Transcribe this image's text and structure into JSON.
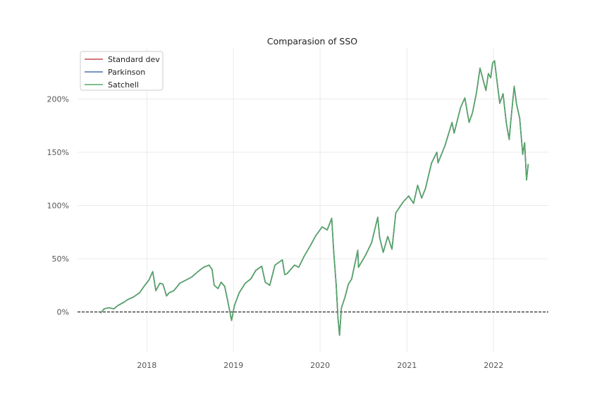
{
  "chart_data": {
    "type": "line",
    "title": "Comparasion of SSO",
    "xlabel": "",
    "ylabel": "",
    "x_ticks": [
      "2018",
      "2019",
      "2020",
      "2021",
      "2022"
    ],
    "y_ticks": [
      "0%",
      "50%",
      "100%",
      "150%",
      "200%"
    ],
    "ylim": [
      -0.38,
      2.48
    ],
    "xlim": [
      "2017-03-15",
      "2022-08-20"
    ],
    "grid": true,
    "legend_position": "top-left",
    "baseline": 0,
    "series": [
      {
        "name": "Standard dev",
        "color": "#c44e52",
        "x": [
          "2017-06-20",
          "2017-07-05",
          "2017-07-25",
          "2017-08-15",
          "2017-09-01",
          "2017-09-25",
          "2017-10-15",
          "2017-11-05",
          "2017-12-01",
          "2017-12-20",
          "2018-01-10",
          "2018-01-26",
          "2018-02-08",
          "2018-02-25",
          "2018-03-10",
          "2018-03-25",
          "2018-04-05",
          "2018-04-25",
          "2018-05-20",
          "2018-06-15",
          "2018-07-10",
          "2018-08-05",
          "2018-08-28",
          "2018-09-20",
          "2018-10-03",
          "2018-10-12",
          "2018-10-28",
          "2018-11-10",
          "2018-11-25",
          "2018-12-10",
          "2018-12-24",
          "2019-01-05",
          "2019-01-25",
          "2019-02-20",
          "2019-03-15",
          "2019-04-05",
          "2019-04-30",
          "2019-05-15",
          "2019-06-03",
          "2019-06-25",
          "2019-07-26",
          "2019-08-05",
          "2019-08-15",
          "2019-09-15",
          "2019-10-03",
          "2019-10-25",
          "2019-11-20",
          "2019-12-15",
          "2020-01-10",
          "2020-01-31",
          "2020-02-19",
          "2020-02-28",
          "2020-03-09",
          "2020-03-16",
          "2020-03-23",
          "2020-03-31",
          "2020-04-15",
          "2020-04-29",
          "2020-05-13",
          "2020-06-08",
          "2020-06-11",
          "2020-07-10",
          "2020-08-05",
          "2020-08-31",
          "2020-09-08",
          "2020-09-23",
          "2020-10-12",
          "2020-10-30",
          "2020-11-15",
          "2020-12-15",
          "2021-01-08",
          "2021-01-29",
          "2021-02-15",
          "2021-03-04",
          "2021-03-20",
          "2021-04-15",
          "2021-05-07",
          "2021-05-12",
          "2021-06-10",
          "2021-07-10",
          "2021-07-19",
          "2021-08-15",
          "2021-09-02",
          "2021-09-20",
          "2021-10-04",
          "2021-10-21",
          "2021-11-05",
          "2021-11-18",
          "2021-11-30",
          "2021-12-10",
          "2021-12-20",
          "2021-12-28",
          "2022-01-05",
          "2022-01-15",
          "2022-01-27",
          "2022-02-10",
          "2022-02-24",
          "2022-03-08",
          "2022-03-15",
          "2022-03-29",
          "2022-04-08",
          "2022-04-21",
          "2022-05-04",
          "2022-05-12",
          "2022-05-20",
          "2022-05-27"
        ],
        "y": [
          -0.01,
          0.03,
          0.04,
          0.03,
          0.06,
          0.09,
          0.12,
          0.14,
          0.18,
          0.24,
          0.3,
          0.38,
          0.2,
          0.27,
          0.26,
          0.15,
          0.18,
          0.2,
          0.27,
          0.3,
          0.33,
          0.38,
          0.42,
          0.44,
          0.4,
          0.25,
          0.22,
          0.28,
          0.24,
          0.08,
          -0.08,
          0.06,
          0.18,
          0.27,
          0.31,
          0.39,
          0.43,
          0.28,
          0.25,
          0.44,
          0.49,
          0.35,
          0.36,
          0.44,
          0.42,
          0.52,
          0.62,
          0.72,
          0.8,
          0.77,
          0.88,
          0.55,
          0.25,
          -0.05,
          -0.22,
          0.04,
          0.14,
          0.26,
          0.31,
          0.58,
          0.42,
          0.53,
          0.65,
          0.89,
          0.7,
          0.56,
          0.71,
          0.59,
          0.93,
          1.03,
          1.09,
          1.02,
          1.19,
          1.07,
          1.16,
          1.4,
          1.5,
          1.4,
          1.56,
          1.78,
          1.68,
          1.92,
          2.01,
          1.78,
          1.87,
          2.06,
          2.29,
          2.18,
          2.08,
          2.24,
          2.2,
          2.34,
          2.36,
          2.18,
          1.96,
          2.05,
          1.77,
          1.62,
          1.8,
          2.12,
          1.95,
          1.82,
          1.48,
          1.59,
          1.24,
          1.39
        ]
      },
      {
        "name": "Parkinson",
        "color": "#4c72b0",
        "x": [
          "2017-06-20",
          "2017-07-05",
          "2017-07-25",
          "2017-08-15",
          "2017-09-01",
          "2017-09-25",
          "2017-10-15",
          "2017-11-05",
          "2017-12-01",
          "2017-12-20",
          "2018-01-10",
          "2018-01-26",
          "2018-02-08",
          "2018-02-25",
          "2018-03-10",
          "2018-03-25",
          "2018-04-05",
          "2018-04-25",
          "2018-05-20",
          "2018-06-15",
          "2018-07-10",
          "2018-08-05",
          "2018-08-28",
          "2018-09-20",
          "2018-10-03",
          "2018-10-12",
          "2018-10-28",
          "2018-11-10",
          "2018-11-25",
          "2018-12-10",
          "2018-12-24",
          "2019-01-05",
          "2019-01-25",
          "2019-02-20",
          "2019-03-15",
          "2019-04-05",
          "2019-04-30",
          "2019-05-15",
          "2019-06-03",
          "2019-06-25",
          "2019-07-26",
          "2019-08-05",
          "2019-08-15",
          "2019-09-15",
          "2019-10-03",
          "2019-10-25",
          "2019-11-20",
          "2019-12-15",
          "2020-01-10",
          "2020-01-31",
          "2020-02-19",
          "2020-02-28",
          "2020-03-09",
          "2020-03-16",
          "2020-03-23",
          "2020-03-31",
          "2020-04-15",
          "2020-04-29",
          "2020-05-13",
          "2020-06-08",
          "2020-06-11",
          "2020-07-10",
          "2020-08-05",
          "2020-08-31",
          "2020-09-08",
          "2020-09-23",
          "2020-10-12",
          "2020-10-30",
          "2020-11-15",
          "2020-12-15",
          "2021-01-08",
          "2021-01-29",
          "2021-02-15",
          "2021-03-04",
          "2021-03-20",
          "2021-04-15",
          "2021-05-07",
          "2021-05-12",
          "2021-06-10",
          "2021-07-10",
          "2021-07-19",
          "2021-08-15",
          "2021-09-02",
          "2021-09-20",
          "2021-10-04",
          "2021-10-21",
          "2021-11-05",
          "2021-11-18",
          "2021-11-30",
          "2021-12-10",
          "2021-12-20",
          "2021-12-28",
          "2022-01-05",
          "2022-01-15",
          "2022-01-27",
          "2022-02-10",
          "2022-02-24",
          "2022-03-08",
          "2022-03-15",
          "2022-03-29",
          "2022-04-08",
          "2022-04-21",
          "2022-05-04",
          "2022-05-12",
          "2022-05-20",
          "2022-05-27"
        ],
        "y": [
          -0.01,
          0.03,
          0.04,
          0.03,
          0.06,
          0.09,
          0.12,
          0.14,
          0.18,
          0.24,
          0.3,
          0.38,
          0.2,
          0.27,
          0.26,
          0.15,
          0.18,
          0.2,
          0.27,
          0.3,
          0.33,
          0.38,
          0.42,
          0.44,
          0.4,
          0.25,
          0.22,
          0.28,
          0.24,
          0.08,
          -0.08,
          0.06,
          0.18,
          0.27,
          0.31,
          0.39,
          0.43,
          0.28,
          0.25,
          0.44,
          0.49,
          0.35,
          0.36,
          0.44,
          0.42,
          0.52,
          0.62,
          0.72,
          0.8,
          0.77,
          0.88,
          0.55,
          0.25,
          -0.05,
          -0.22,
          0.04,
          0.14,
          0.26,
          0.31,
          0.58,
          0.42,
          0.53,
          0.65,
          0.89,
          0.7,
          0.56,
          0.71,
          0.59,
          0.93,
          1.03,
          1.09,
          1.02,
          1.19,
          1.07,
          1.16,
          1.4,
          1.5,
          1.4,
          1.56,
          1.78,
          1.68,
          1.92,
          2.01,
          1.78,
          1.87,
          2.06,
          2.29,
          2.18,
          2.08,
          2.24,
          2.2,
          2.34,
          2.36,
          2.18,
          1.96,
          2.05,
          1.77,
          1.62,
          1.8,
          2.12,
          1.95,
          1.82,
          1.48,
          1.59,
          1.24,
          1.39
        ]
      },
      {
        "name": "Satchell",
        "color": "#55a868",
        "x": [
          "2017-06-20",
          "2017-07-05",
          "2017-07-25",
          "2017-08-15",
          "2017-09-01",
          "2017-09-25",
          "2017-10-15",
          "2017-11-05",
          "2017-12-01",
          "2017-12-20",
          "2018-01-10",
          "2018-01-26",
          "2018-02-08",
          "2018-02-25",
          "2018-03-10",
          "2018-03-25",
          "2018-04-05",
          "2018-04-25",
          "2018-05-20",
          "2018-06-15",
          "2018-07-10",
          "2018-08-05",
          "2018-08-28",
          "2018-09-20",
          "2018-10-03",
          "2018-10-12",
          "2018-10-28",
          "2018-11-10",
          "2018-11-25",
          "2018-12-10",
          "2018-12-24",
          "2019-01-05",
          "2019-01-25",
          "2019-02-20",
          "2019-03-15",
          "2019-04-05",
          "2019-04-30",
          "2019-05-15",
          "2019-06-03",
          "2019-06-25",
          "2019-07-26",
          "2019-08-05",
          "2019-08-15",
          "2019-09-15",
          "2019-10-03",
          "2019-10-25",
          "2019-11-20",
          "2019-12-15",
          "2020-01-10",
          "2020-01-31",
          "2020-02-19",
          "2020-02-28",
          "2020-03-09",
          "2020-03-16",
          "2020-03-23",
          "2020-03-31",
          "2020-04-15",
          "2020-04-29",
          "2020-05-13",
          "2020-06-08",
          "2020-06-11",
          "2020-07-10",
          "2020-08-05",
          "2020-08-31",
          "2020-09-08",
          "2020-09-23",
          "2020-10-12",
          "2020-10-30",
          "2020-11-15",
          "2020-12-15",
          "2021-01-08",
          "2021-01-29",
          "2021-02-15",
          "2021-03-04",
          "2021-03-20",
          "2021-04-15",
          "2021-05-07",
          "2021-05-12",
          "2021-06-10",
          "2021-07-10",
          "2021-07-19",
          "2021-08-15",
          "2021-09-02",
          "2021-09-20",
          "2021-10-04",
          "2021-10-21",
          "2021-11-05",
          "2021-11-18",
          "2021-11-30",
          "2021-12-10",
          "2021-12-20",
          "2021-12-28",
          "2022-01-05",
          "2022-01-15",
          "2022-01-27",
          "2022-02-10",
          "2022-02-24",
          "2022-03-08",
          "2022-03-15",
          "2022-03-29",
          "2022-04-08",
          "2022-04-21",
          "2022-05-04",
          "2022-05-12",
          "2022-05-20",
          "2022-05-27"
        ],
        "y": [
          -0.01,
          0.03,
          0.04,
          0.03,
          0.06,
          0.09,
          0.12,
          0.14,
          0.18,
          0.24,
          0.3,
          0.38,
          0.2,
          0.27,
          0.26,
          0.15,
          0.18,
          0.2,
          0.27,
          0.3,
          0.33,
          0.38,
          0.42,
          0.44,
          0.4,
          0.25,
          0.22,
          0.28,
          0.24,
          0.08,
          -0.08,
          0.06,
          0.18,
          0.27,
          0.31,
          0.39,
          0.43,
          0.28,
          0.25,
          0.44,
          0.49,
          0.35,
          0.36,
          0.44,
          0.42,
          0.52,
          0.62,
          0.72,
          0.8,
          0.77,
          0.88,
          0.55,
          0.25,
          -0.05,
          -0.22,
          0.04,
          0.14,
          0.26,
          0.31,
          0.58,
          0.42,
          0.53,
          0.65,
          0.89,
          0.7,
          0.56,
          0.71,
          0.59,
          0.93,
          1.03,
          1.09,
          1.02,
          1.19,
          1.07,
          1.16,
          1.4,
          1.5,
          1.4,
          1.56,
          1.78,
          1.68,
          1.92,
          2.01,
          1.78,
          1.87,
          2.06,
          2.29,
          2.18,
          2.08,
          2.24,
          2.2,
          2.34,
          2.36,
          2.18,
          1.96,
          2.05,
          1.77,
          1.62,
          1.8,
          2.12,
          1.95,
          1.82,
          1.48,
          1.59,
          1.24,
          1.39
        ]
      }
    ]
  }
}
